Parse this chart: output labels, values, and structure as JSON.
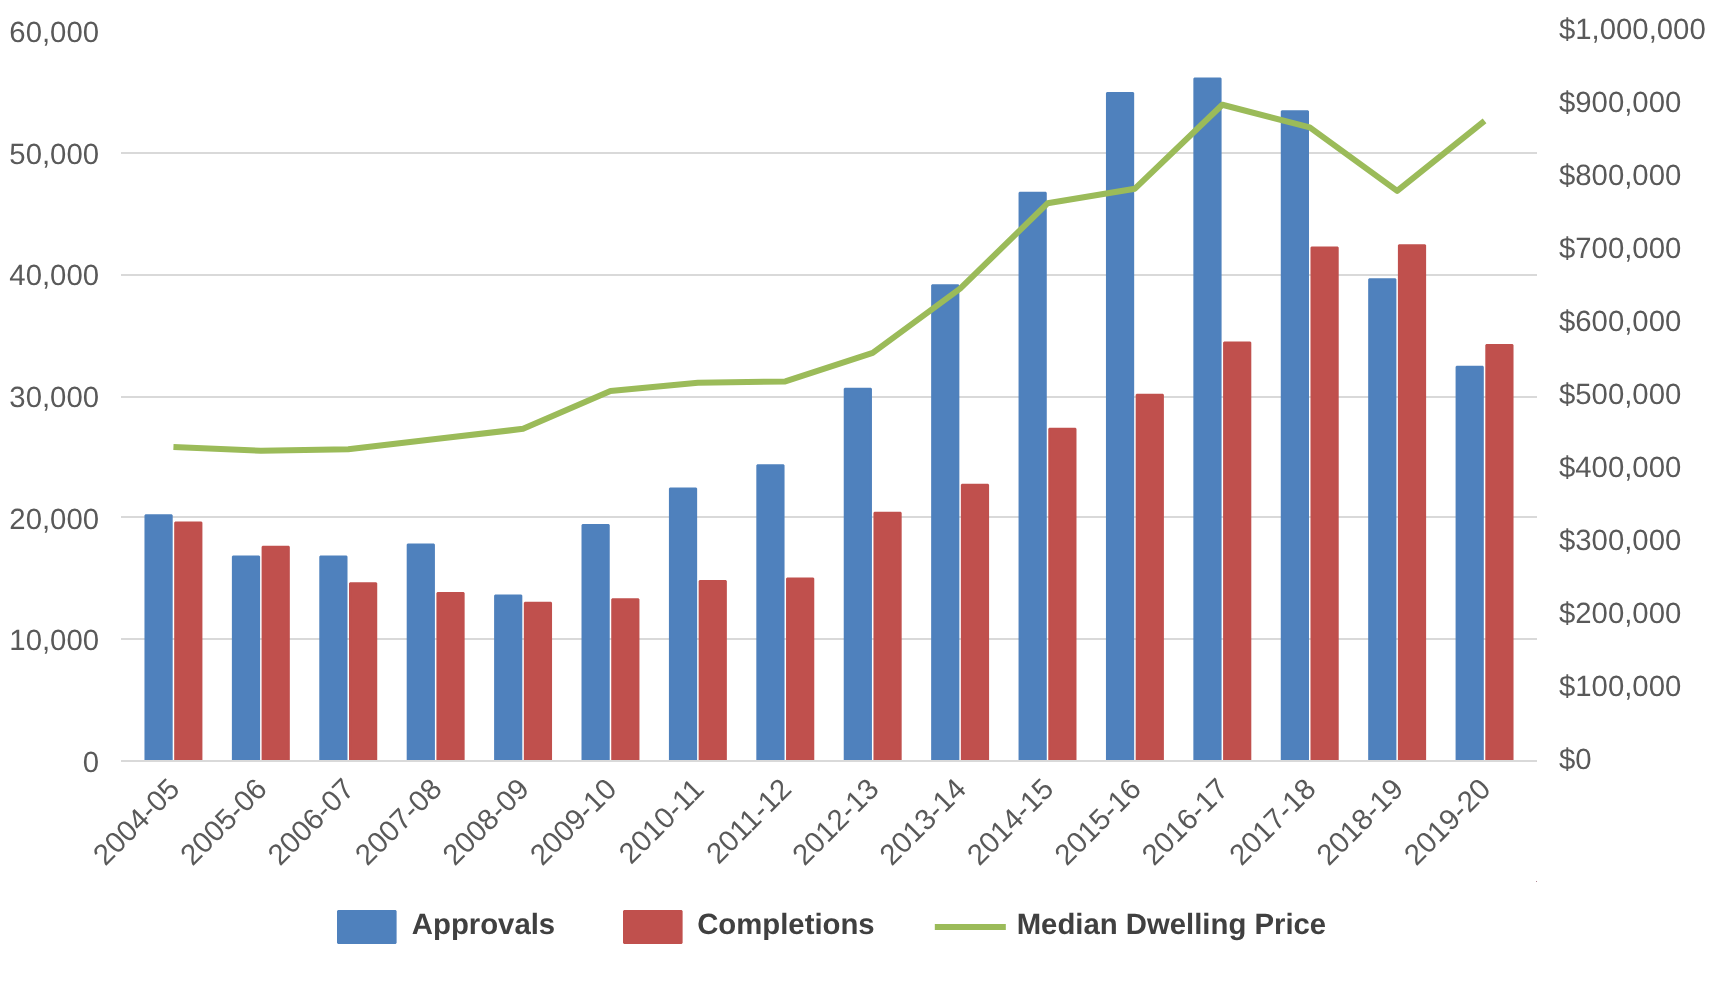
{
  "chart_data": {
    "type": "bar",
    "categories": [
      "2004-05",
      "2005-06",
      "2006-07",
      "2007-08",
      "2008-09",
      "2009-10",
      "2010-11",
      "2011-12",
      "2012-13",
      "2013-14",
      "2014-15",
      "2015-16",
      "2016-17",
      "2017-18",
      "2018-19",
      "2019-20"
    ],
    "series": [
      {
        "name": "Approvals",
        "color": "#4f81bd",
        "values": [
          20200,
          16800,
          16800,
          17800,
          13600,
          19400,
          22400,
          24300,
          30600,
          39100,
          46700,
          54900,
          56100,
          53400,
          39600,
          32400
        ]
      },
      {
        "name": "Completions",
        "color": "#c0504d",
        "values": [
          19600,
          17600,
          14600,
          13800,
          13000,
          13300,
          14800,
          15000,
          20400,
          22700,
          27300,
          30100,
          34400,
          42200,
          42400,
          34200
        ]
      },
      {
        "name": "Median Dwelling Price",
        "color": "#9bbb59",
        "type": "line",
        "axis": "y2",
        "values": [
          430000,
          425000,
          427000,
          441000,
          455000,
          507000,
          518000,
          520000,
          559000,
          647000,
          764000,
          784000,
          899000,
          868000,
          781000,
          877000
        ]
      }
    ],
    "ylim": [
      0,
      60000
    ],
    "yticks": [
      0,
      {
        "value": 10000,
        "label": "10,000"
      },
      {
        "value": 20000,
        "label": "20,000"
      },
      {
        "value": 30000,
        "label": "30,000"
      },
      {
        "value": 40000,
        "label": "40,000"
      },
      {
        "value": 50000,
        "label": "50,000"
      },
      {
        "value": 60000,
        "label": "60,000"
      }
    ],
    "y2lim": [
      0,
      1000000
    ],
    "y2ticks": [
      {
        "value": 0,
        "label": "$0"
      },
      {
        "value": 100000,
        "label": "$100,000"
      },
      {
        "value": 200000,
        "label": "$200,000"
      },
      {
        "value": 300000,
        "label": "$300,000"
      },
      {
        "value": 400000,
        "label": "$400,000"
      },
      {
        "value": 500000,
        "label": "$500,000"
      },
      {
        "value": 600000,
        "label": "$600,000"
      },
      {
        "value": 700000,
        "label": "$700,000"
      },
      {
        "value": 800000,
        "label": "$800,000"
      },
      {
        "value": 900000,
        "label": "$900,000"
      },
      {
        "value": 1000000,
        "label": "$1,000,000"
      }
    ],
    "grid": "y",
    "legend": "bottom"
  }
}
